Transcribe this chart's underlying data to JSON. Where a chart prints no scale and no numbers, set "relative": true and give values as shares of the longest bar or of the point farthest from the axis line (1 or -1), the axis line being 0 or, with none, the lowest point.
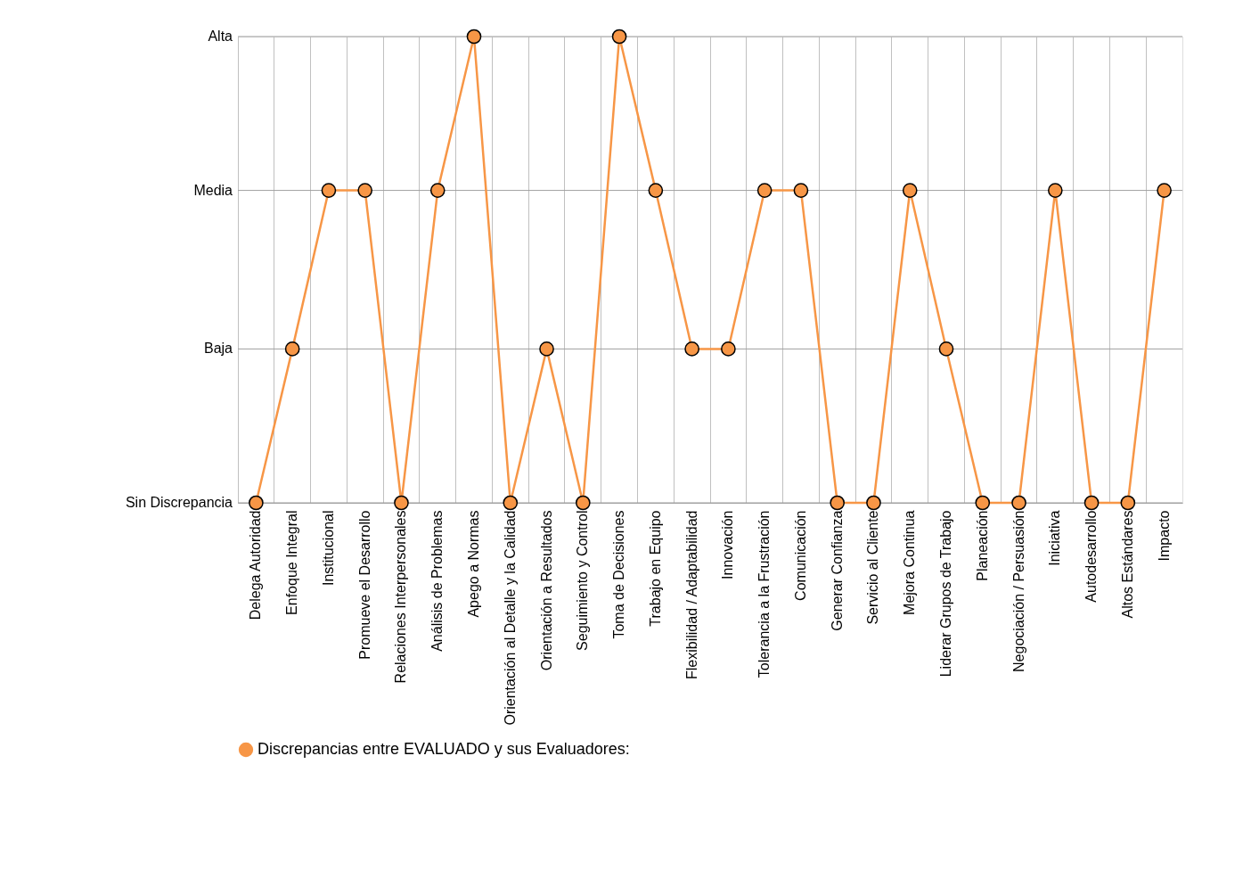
{
  "chart_data": {
    "type": "line",
    "categories": [
      "Delega Autoridad",
      "Enfoque Integral",
      "Institucional",
      "Promueve el Desarrollo",
      "Relaciones Interpersonales",
      "Análisis de Problemas",
      "Apego a Normas",
      "Orientación al Detalle y la Calidad",
      "Orientación a Resultados",
      "Seguimiento y Control",
      "Toma de Decisiones",
      "Trabajo en Equipo",
      "Flexibilidad / Adaptabilidad",
      "Innovación",
      "Tolerancia a la Frustración",
      "Comunicación",
      "Generar Confianza",
      "Servicio al Cliente",
      "Mejora Continua",
      "Liderar Grupos de Trabajo",
      "Planeación",
      "Negociación / Persuasión",
      "Iniciativa",
      "Autodesarrollo",
      "Altos Estándares",
      "Impacto"
    ],
    "relative": true,
    "series": [
      {
        "name": "Discrepancias entre EVALUADO y sus Evaluadores:",
        "color": "#f79646",
        "values": [
          0,
          0.33,
          0.67,
          0.67,
          0,
          0.67,
          1,
          0,
          0.33,
          0,
          1,
          0.67,
          0.33,
          0.33,
          0.67,
          0.67,
          0,
          0,
          0.67,
          0.33,
          0,
          0,
          0.67,
          0,
          0,
          0.67
        ]
      }
    ],
    "ref_lines": [
      {
        "axis": "y",
        "value": 1,
        "label": "Alta",
        "color": "#a0a0a0"
      },
      {
        "axis": "y",
        "value": 0.67,
        "label": "Media",
        "color": "#a0a0a0"
      },
      {
        "axis": "y",
        "value": 0.33,
        "label": "Baja",
        "color": "#a0a0a0"
      },
      {
        "axis": "y",
        "value": 0,
        "label": "Sin Discrepancia",
        "color": "#a0a0a0"
      }
    ],
    "grid": "x",
    "legend": "bottom",
    "marker": "circle",
    "line_style": "solid"
  }
}
